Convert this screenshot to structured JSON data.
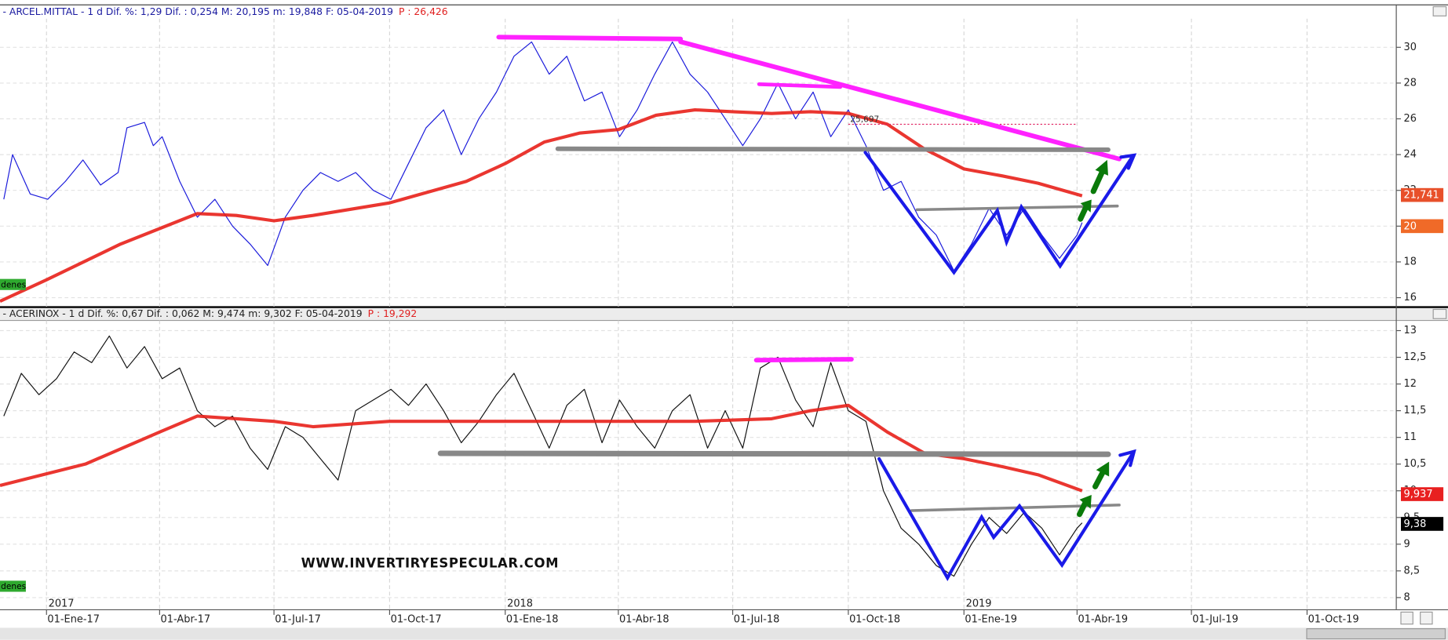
{
  "chart_data": [
    {
      "type": "line",
      "title": "- ARCEL.MITTAL -  1 d Dif. %: 1,29 Dif. : 0,254 M: 20,195 m: 19,848 F: 05-04-2019",
      "price_note": "P : 26,426",
      "side_tag": "denes",
      "xlim": [
        "2016-11-25",
        "2019-12-11"
      ],
      "ylim": [
        15.5,
        31.6
      ],
      "yticks": [
        16,
        18,
        20,
        22,
        24,
        26,
        28,
        30
      ],
      "grid": true,
      "series": [
        {
          "color": "#1a1adb",
          "x": [
            "2016-11-28",
            "2016-12-05",
            "2016-12-19",
            "2017-01-02",
            "2017-01-16",
            "2017-01-30",
            "2017-02-13",
            "2017-02-27",
            "2017-03-06",
            "2017-03-20",
            "2017-03-27",
            "2017-04-03",
            "2017-04-17",
            "2017-05-01",
            "2017-05-15",
            "2017-05-29",
            "2017-06-12",
            "2017-06-26",
            "2017-07-10",
            "2017-07-24",
            "2017-08-07",
            "2017-08-21",
            "2017-09-04",
            "2017-09-18",
            "2017-10-02",
            "2017-10-16",
            "2017-10-30",
            "2017-11-13",
            "2017-11-27",
            "2017-12-11",
            "2017-12-25",
            "2018-01-08",
            "2018-01-22",
            "2018-02-05",
            "2018-02-19",
            "2018-03-05",
            "2018-03-19",
            "2018-04-02",
            "2018-04-16",
            "2018-04-30",
            "2018-05-14",
            "2018-05-28",
            "2018-06-11",
            "2018-06-25",
            "2018-07-09",
            "2018-07-23",
            "2018-08-06",
            "2018-08-20",
            "2018-09-03",
            "2018-09-17",
            "2018-10-01",
            "2018-10-15",
            "2018-10-29",
            "2018-11-12",
            "2018-11-26",
            "2018-12-10",
            "2018-12-24",
            "2019-01-07",
            "2019-01-21",
            "2019-02-04",
            "2019-02-18",
            "2019-03-04",
            "2019-03-18",
            "2019-04-01",
            "2019-04-05"
          ],
          "values": [
            21.5,
            24.0,
            21.8,
            21.5,
            22.5,
            23.7,
            22.3,
            23.0,
            25.5,
            25.8,
            24.5,
            25.0,
            22.5,
            20.5,
            21.5,
            20.0,
            19.0,
            17.8,
            20.5,
            22.0,
            23.0,
            22.5,
            23.0,
            22.0,
            21.5,
            23.5,
            25.5,
            26.5,
            24.0,
            26.0,
            27.5,
            29.5,
            30.3,
            28.5,
            29.5,
            27.0,
            27.5,
            25.0,
            26.5,
            28.5,
            30.3,
            28.5,
            27.5,
            26.0,
            24.5,
            26.0,
            28.0,
            26.0,
            27.5,
            25.0,
            26.5,
            24.5,
            22.0,
            22.5,
            20.5,
            19.5,
            17.5,
            19.0,
            21.0,
            19.5,
            21.0,
            19.5,
            18.2,
            19.5,
            20.2
          ],
          "width": 1
        },
        {
          "color": "#e8201a",
          "x": [
            "2016-11-25",
            "2017-01-01",
            "2017-03-01",
            "2017-05-01",
            "2017-06-01",
            "2017-07-01",
            "2017-08-01",
            "2017-10-01",
            "2017-12-01",
            "2018-01-01",
            "2018-02-01",
            "2018-03-01",
            "2018-04-01",
            "2018-05-01",
            "2018-06-01",
            "2018-07-01",
            "2018-08-01",
            "2018-09-01",
            "2018-10-01",
            "2018-11-01",
            "2018-12-01",
            "2019-01-01",
            "2019-02-01",
            "2019-03-01",
            "2019-04-05"
          ],
          "values": [
            15.8,
            17.0,
            19.0,
            20.7,
            20.6,
            20.3,
            20.6,
            21.3,
            22.5,
            23.5,
            24.7,
            25.2,
            25.4,
            26.2,
            26.5,
            26.4,
            26.3,
            26.4,
            26.3,
            25.7,
            24.3,
            23.2,
            22.8,
            22.4,
            21.7
          ],
          "width": 3.5
        }
      ],
      "reference_line": {
        "value": 25.697,
        "label": "25,697",
        "from": "2018-10-01",
        "to": "2019-04-01"
      },
      "price_tags": [
        {
          "value": 21.741,
          "label": "21,741",
          "color": "#e8502a"
        },
        {
          "value": 20,
          "label": "20",
          "color": "#f06a28"
        }
      ]
    },
    {
      "type": "line",
      "title": "- ACERINOX -  1 d Dif. %: 0,67 Dif. : 0,062 M: 9,474 m: 9,302 F: 05-04-2019",
      "price_note": "P : 19,292",
      "side_tag": "denes",
      "watermark": "WWW.INVERTIRYESPECULAR.COM",
      "xlim": [
        "2016-11-25",
        "2019-12-11"
      ],
      "ylim": [
        7.78,
        13.19
      ],
      "yticks": [
        8,
        {
          "value": 8.5,
          "label": "8,5"
        },
        9,
        {
          "value": 9.5,
          "label": "9,5"
        },
        10,
        {
          "value": 10.5,
          "label": "10,5"
        },
        11,
        {
          "value": 11.5,
          "label": "11,5"
        },
        12,
        {
          "value": 12.5,
          "label": "12,5"
        },
        13
      ],
      "xticks": [
        {
          "value": "2017-01-01",
          "label": "01-Ene-17"
        },
        {
          "value": "2017-04-01",
          "label": "01-Abr-17"
        },
        {
          "value": "2017-07-01",
          "label": "01-Jul-17"
        },
        {
          "value": "2017-10-01",
          "label": "01-Oct-17"
        },
        {
          "value": "2018-01-01",
          "label": "01-Ene-18"
        },
        {
          "value": "2018-04-01",
          "label": "01-Abr-18"
        },
        {
          "value": "2018-07-01",
          "label": "01-Jul-18"
        },
        {
          "value": "2018-10-01",
          "label": "01-Oct-18"
        },
        {
          "value": "2019-01-01",
          "label": "01-Ene-19"
        },
        {
          "value": "2019-04-01",
          "label": "01-Abr-19"
        },
        {
          "value": "2019-07-01",
          "label": "01-Jul-19"
        },
        {
          "value": "2019-10-01",
          "label": "01-Oct-19"
        }
      ],
      "year_labels": [
        {
          "value": "2017-01-01",
          "label": "2017"
        },
        {
          "value": "2018-01-01",
          "label": "2018"
        },
        {
          "value": "2019-01-01",
          "label": "2019"
        }
      ],
      "grid": true,
      "series": [
        {
          "color": "#111111",
          "x": [
            "2016-11-28",
            "2016-12-12",
            "2016-12-26",
            "2017-01-09",
            "2017-01-23",
            "2017-02-06",
            "2017-02-20",
            "2017-03-06",
            "2017-03-20",
            "2017-04-03",
            "2017-04-17",
            "2017-05-01",
            "2017-05-15",
            "2017-05-29",
            "2017-06-12",
            "2017-06-26",
            "2017-07-10",
            "2017-07-24",
            "2017-08-07",
            "2017-08-21",
            "2017-09-04",
            "2017-09-18",
            "2017-10-02",
            "2017-10-16",
            "2017-10-30",
            "2017-11-13",
            "2017-11-27",
            "2017-12-11",
            "2017-12-25",
            "2018-01-08",
            "2018-01-22",
            "2018-02-05",
            "2018-02-19",
            "2018-03-05",
            "2018-03-19",
            "2018-04-02",
            "2018-04-16",
            "2018-04-30",
            "2018-05-14",
            "2018-05-28",
            "2018-06-11",
            "2018-06-25",
            "2018-07-09",
            "2018-07-23",
            "2018-08-06",
            "2018-08-20",
            "2018-09-03",
            "2018-09-17",
            "2018-10-01",
            "2018-10-15",
            "2018-10-29",
            "2018-11-12",
            "2018-11-26",
            "2018-12-10",
            "2018-12-24",
            "2019-01-07",
            "2019-01-21",
            "2019-02-04",
            "2019-02-18",
            "2019-03-04",
            "2019-03-18",
            "2019-04-01",
            "2019-04-05"
          ],
          "values": [
            11.4,
            12.2,
            11.8,
            12.1,
            12.6,
            12.4,
            12.9,
            12.3,
            12.7,
            12.1,
            12.3,
            11.5,
            11.2,
            11.4,
            10.8,
            10.4,
            11.2,
            11.0,
            10.6,
            10.2,
            11.5,
            11.7,
            11.9,
            11.6,
            12.0,
            11.5,
            10.9,
            11.3,
            11.8,
            12.2,
            11.5,
            10.8,
            11.6,
            11.9,
            10.9,
            11.7,
            11.2,
            10.8,
            11.5,
            11.8,
            10.8,
            11.5,
            10.8,
            12.3,
            12.5,
            11.7,
            11.2,
            12.4,
            11.5,
            11.3,
            10.0,
            9.3,
            9.0,
            8.6,
            8.4,
            9.0,
            9.5,
            9.2,
            9.6,
            9.3,
            8.8,
            9.3,
            9.4
          ],
          "width": 1
        },
        {
          "color": "#e8201a",
          "x": [
            "2016-11-25",
            "2017-02-01",
            "2017-04-01",
            "2017-05-01",
            "2017-07-01",
            "2017-08-01",
            "2017-10-01",
            "2017-12-01",
            "2018-02-01",
            "2018-04-01",
            "2018-06-01",
            "2018-08-01",
            "2018-09-01",
            "2018-10-01",
            "2018-11-01",
            "2018-12-01",
            "2019-01-01",
            "2019-02-01",
            "2019-03-01",
            "2019-04-05"
          ],
          "values": [
            10.1,
            10.5,
            11.1,
            11.4,
            11.3,
            11.2,
            11.3,
            11.3,
            11.3,
            11.3,
            11.3,
            11.35,
            11.5,
            11.6,
            11.1,
            10.7,
            10.6,
            10.45,
            10.3,
            10.0
          ],
          "width": 3.5
        }
      ],
      "price_tags": [
        {
          "value": 9.937,
          "label": "9,937",
          "color": "#e82020"
        },
        {
          "value": 9.38,
          "label": "9,38",
          "color": "#000000"
        }
      ]
    }
  ]
}
